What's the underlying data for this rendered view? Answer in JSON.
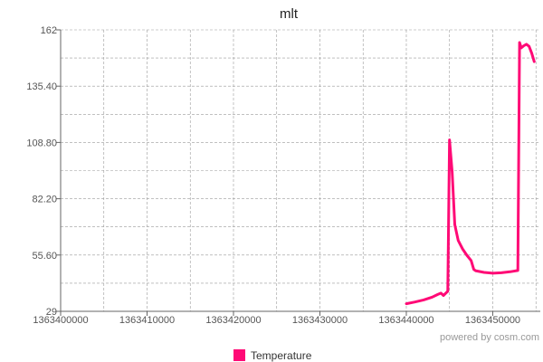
{
  "chart_data": {
    "type": "line",
    "title": "mlt",
    "xlabel": "",
    "ylabel": "",
    "xlim": [
      1363400000,
      1363455500
    ],
    "ylim": [
      29,
      162
    ],
    "x_ticks": [
      1363400000,
      1363410000,
      1363420000,
      1363430000,
      1363440000,
      1363450000
    ],
    "y_ticks": [
      29,
      55.6,
      82.2,
      108.8,
      135.4,
      162
    ],
    "y_tick_labels": [
      "29",
      "55.60",
      "82.20",
      "108.80",
      "135.40",
      "162"
    ],
    "grid": true,
    "legend_position": "bottom-center",
    "series": [
      {
        "name": "Temperature",
        "color": "#ff0a76",
        "x": [
          1363440000,
          1363441000,
          1363442000,
          1363443000,
          1363443600,
          1363444000,
          1363444300,
          1363444800,
          1363445000,
          1363445300,
          1363445600,
          1363446000,
          1363446500,
          1363447000,
          1363447500,
          1363447800,
          1363448000,
          1363449000,
          1363450000,
          1363451000,
          1363452000,
          1363452900,
          1363453100,
          1363453300,
          1363453600,
          1363453900,
          1363454200,
          1363454500,
          1363454800
        ],
        "values": [
          32.6,
          33.4,
          34.4,
          35.7,
          36.9,
          37.6,
          36.5,
          38.5,
          110.0,
          95.0,
          70.0,
          62.5,
          58.5,
          55.5,
          53.0,
          48.8,
          48.2,
          47.4,
          47.0,
          47.2,
          47.7,
          48.3,
          156.0,
          153.5,
          154.5,
          155.2,
          154.2,
          151.0,
          147.0
        ]
      }
    ]
  },
  "credit": "powered by cosm.com",
  "legend": {
    "label": "Temperature",
    "color": "#ff0a76"
  },
  "colors": {
    "grid": "#9a9a9a",
    "axis": "#666666",
    "line": "#ff0a76"
  }
}
